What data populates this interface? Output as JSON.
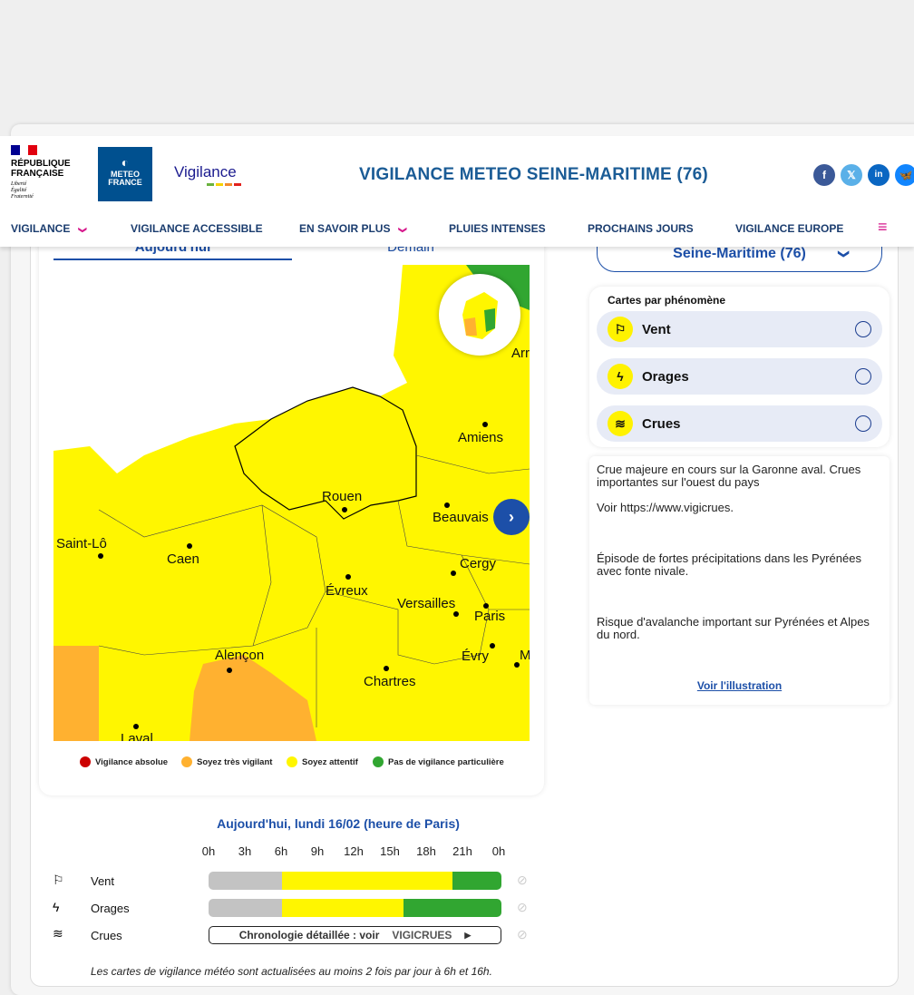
{
  "header": {
    "rf_lines": [
      "RÉPUBLIQUE",
      "FRANÇAISE"
    ],
    "rf_motto": [
      "Liberté",
      "Égalité",
      "Fraternité"
    ],
    "mf_logo": [
      "METEO",
      "FRANCE"
    ],
    "vigilance_logo": "Vigilance",
    "title": "VIGILANCE METEO SEINE-MARITIME (76)",
    "social": [
      "f",
      "𝕏",
      "in",
      "🦋"
    ]
  },
  "nav": {
    "items": [
      "VIGILANCE",
      "VIGILANCE ACCESSIBLE",
      "EN SAVOIR PLUS",
      "PLUIES INTENSES",
      "PROCHAINS JOURS",
      "VIGILANCE EUROPE"
    ],
    "chevron": "❯",
    "menu": "≡"
  },
  "tabs": [
    "Aujourd'hui",
    "Demain"
  ],
  "map": {
    "cities": [
      "Amiens",
      "Rouen",
      "Beauvais",
      "Saint-Lô",
      "Caen",
      "Cergy",
      "Évreux",
      "Versailles",
      "Paris",
      "Alençon",
      "Évry",
      "Chartres",
      "Laval",
      "Arr",
      "M"
    ]
  },
  "legend": [
    "Vigilance absolue",
    "Soyez très vigilant",
    "Soyez attentif",
    "Pas de vigilance particulière"
  ],
  "colors": {
    "red": "#cc0000",
    "orange": "#ffb130",
    "yellow": "#fff600",
    "green": "#31a631",
    "grey": "#c3c3c3"
  },
  "department_select": "Seine-Maritime (76)",
  "phenomena": {
    "title": "Cartes par phénomène",
    "items": [
      "Vent",
      "Orages",
      "Crues"
    ]
  },
  "bulletin": {
    "p1": "Crue majeure en cours sur la Garonne aval. Crues importantes sur l'ouest du pays",
    "p2": "Voir https://www.vigicrues.",
    "p3": "Épisode de fortes précipitations dans les Pyrénées avec fonte nivale.",
    "p4": "Risque d'avalanche important sur Pyrénées et Alpes du nord.",
    "link": "Voir l'illustration"
  },
  "timeline": {
    "title": "Aujourd'hui, lundi 16/02 (heure de Paris)",
    "hours": [
      "0h",
      "3h",
      "6h",
      "9h",
      "12h",
      "15h",
      "18h",
      "21h",
      "0h"
    ],
    "rows": [
      {
        "label": "Vent",
        "segments": [
          {
            "from": 0,
            "to": 6,
            "level": "grey"
          },
          {
            "from": 6,
            "to": 20,
            "level": "yellow"
          },
          {
            "from": 20,
            "to": 24,
            "level": "green"
          }
        ]
      },
      {
        "label": "Orages",
        "segments": [
          {
            "from": 0,
            "to": 6,
            "level": "grey"
          },
          {
            "from": 6,
            "to": 16,
            "level": "yellow"
          },
          {
            "from": 16,
            "to": 24,
            "level": "green"
          }
        ]
      },
      {
        "label": "Crues",
        "link": "Chronologie détaillée : voir",
        "vigicrues": "VIGICRUES"
      }
    ],
    "footnote": "Les cartes de vigilance météo sont actualisées au moins 2 fois par jour à 6h et 16h."
  }
}
